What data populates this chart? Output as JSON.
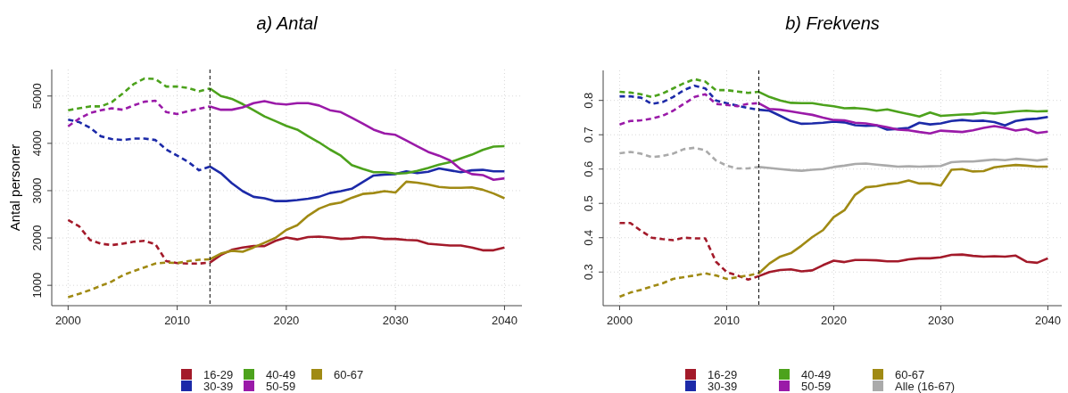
{
  "chart_data": [
    {
      "type": "line",
      "title": "a) Antal",
      "ylabel": "Antal personer",
      "xlim": [
        1998.5,
        2041.6
      ],
      "xticks": [
        2000,
        2010,
        2020,
        2030,
        2040
      ],
      "ylim": [
        570,
        5560
      ],
      "yticks": [
        1000,
        2000,
        3000,
        4000,
        5000
      ],
      "grid": true,
      "legend": "bottom",
      "ref_lines": [
        {
          "axis": "x",
          "value": 2013,
          "color": "#000000",
          "line_style": "dashed"
        }
      ],
      "series": [
        {
          "color": "#a31a2a",
          "line_style": "dashed",
          "x": [
            2000,
            2001,
            2002,
            2003,
            2004,
            2005,
            2006,
            2007,
            2008,
            2009,
            2010,
            2011,
            2012,
            2013
          ],
          "values": [
            2380,
            2250,
            1960,
            1880,
            1850,
            1880,
            1920,
            1940,
            1870,
            1510,
            1470,
            1460,
            1460,
            1480
          ]
        },
        {
          "name": "16-29",
          "color": "#a31a2a",
          "line_style": "solid",
          "x": [
            2013,
            2014,
            2015,
            2016,
            2017,
            2018,
            2019,
            2020,
            2021,
            2022,
            2023,
            2024,
            2025,
            2026,
            2027,
            2028,
            2029,
            2030,
            2031,
            2032,
            2033,
            2034,
            2035,
            2036,
            2037,
            2038,
            2039,
            2040
          ],
          "values": [
            1480,
            1640,
            1750,
            1800,
            1830,
            1830,
            1940,
            2010,
            1970,
            2020,
            2030,
            2010,
            1980,
            1990,
            2020,
            2010,
            1980,
            1980,
            1960,
            1950,
            1880,
            1860,
            1840,
            1840,
            1800,
            1740,
            1740,
            1800
          ]
        },
        {
          "color": "#1c2aa8",
          "line_style": "dashed",
          "x": [
            2000,
            2001,
            2002,
            2003,
            2004,
            2005,
            2006,
            2007,
            2008,
            2009,
            2010,
            2011,
            2012,
            2013
          ],
          "values": [
            4500,
            4450,
            4330,
            4150,
            4090,
            4070,
            4100,
            4100,
            4070,
            3870,
            3740,
            3610,
            3430,
            3510
          ]
        },
        {
          "name": "30-39",
          "color": "#1c2aa8",
          "line_style": "solid",
          "x": [
            2013,
            2014,
            2015,
            2016,
            2017,
            2018,
            2019,
            2020,
            2021,
            2022,
            2023,
            2024,
            2025,
            2026,
            2027,
            2028,
            2029,
            2030,
            2031,
            2032,
            2033,
            2034,
            2035,
            2036,
            2037,
            2038,
            2039,
            2040
          ],
          "values": [
            3510,
            3370,
            3160,
            2990,
            2870,
            2840,
            2780,
            2780,
            2800,
            2830,
            2870,
            2950,
            2990,
            3040,
            3180,
            3320,
            3340,
            3350,
            3410,
            3370,
            3400,
            3470,
            3430,
            3390,
            3430,
            3440,
            3410,
            3410
          ]
        },
        {
          "color": "#4ca21c",
          "line_style": "dashed",
          "x": [
            2000,
            2001,
            2002,
            2003,
            2004,
            2005,
            2006,
            2007,
            2008,
            2009,
            2010,
            2011,
            2012,
            2013
          ],
          "values": [
            4700,
            4740,
            4780,
            4780,
            4870,
            5050,
            5250,
            5370,
            5360,
            5200,
            5200,
            5170,
            5100,
            5160
          ]
        },
        {
          "name": "40-49",
          "color": "#4ca21c",
          "line_style": "solid",
          "x": [
            2013,
            2014,
            2015,
            2016,
            2017,
            2018,
            2019,
            2020,
            2021,
            2022,
            2023,
            2024,
            2025,
            2026,
            2027,
            2028,
            2029,
            2030,
            2031,
            2032,
            2033,
            2034,
            2035,
            2036,
            2037,
            2038,
            2039,
            2040
          ],
          "values": [
            5160,
            5000,
            4940,
            4830,
            4700,
            4570,
            4470,
            4370,
            4290,
            4150,
            4020,
            3870,
            3740,
            3540,
            3460,
            3390,
            3390,
            3360,
            3370,
            3420,
            3480,
            3550,
            3600,
            3680,
            3760,
            3860,
            3930,
            3940
          ]
        },
        {
          "color": "#9a1aa8",
          "line_style": "dashed",
          "x": [
            2000,
            2001,
            2002,
            2003,
            2004,
            2005,
            2006,
            2007,
            2008,
            2009,
            2010,
            2011,
            2012,
            2013
          ],
          "values": [
            4360,
            4520,
            4640,
            4700,
            4740,
            4710,
            4800,
            4880,
            4900,
            4660,
            4620,
            4680,
            4730,
            4780
          ]
        },
        {
          "name": "50-59",
          "color": "#9a1aa8",
          "line_style": "solid",
          "x": [
            2013,
            2014,
            2015,
            2016,
            2017,
            2018,
            2019,
            2020,
            2021,
            2022,
            2023,
            2024,
            2025,
            2026,
            2027,
            2028,
            2029,
            2030,
            2031,
            2032,
            2033,
            2034,
            2035,
            2036,
            2037,
            2038,
            2039,
            2040
          ],
          "values": [
            4780,
            4710,
            4710,
            4760,
            4850,
            4890,
            4840,
            4820,
            4850,
            4850,
            4800,
            4700,
            4660,
            4540,
            4420,
            4290,
            4210,
            4180,
            4060,
            3940,
            3820,
            3740,
            3640,
            3450,
            3350,
            3330,
            3230,
            3260
          ]
        },
        {
          "color": "#a08a14",
          "line_style": "dashed",
          "x": [
            2000,
            2001,
            2002,
            2003,
            2004,
            2005,
            2006,
            2007,
            2008,
            2009,
            2010,
            2011,
            2012,
            2013
          ],
          "values": [
            750,
            820,
            900,
            990,
            1080,
            1210,
            1300,
            1380,
            1460,
            1480,
            1470,
            1510,
            1540,
            1550
          ]
        },
        {
          "name": "60-67",
          "color": "#a08a14",
          "line_style": "solid",
          "x": [
            2013,
            2014,
            2015,
            2016,
            2017,
            2018,
            2019,
            2020,
            2021,
            2022,
            2023,
            2024,
            2025,
            2026,
            2027,
            2028,
            2029,
            2030,
            2031,
            2032,
            2033,
            2034,
            2035,
            2036,
            2037,
            2038,
            2039,
            2040
          ],
          "values": [
            1550,
            1670,
            1730,
            1710,
            1800,
            1900,
            2000,
            2170,
            2270,
            2470,
            2620,
            2710,
            2750,
            2850,
            2930,
            2950,
            2990,
            2960,
            3190,
            3170,
            3130,
            3080,
            3060,
            3060,
            3070,
            3020,
            2940,
            2840
          ]
        }
      ]
    },
    {
      "type": "line",
      "title": "b) Frekvens",
      "xlim": [
        1998.46,
        2041.3
      ],
      "xticks": [
        2000,
        2010,
        2020,
        2030,
        2040
      ],
      "ylim": [
        0.202,
        0.8875
      ],
      "yticks": [
        0.3,
        0.4,
        0.5,
        0.6,
        0.7,
        0.8
      ],
      "grid": true,
      "legend": "bottom",
      "ref_lines": [
        {
          "axis": "x",
          "value": 2013,
          "color": "#000000",
          "line_style": "dashed"
        }
      ],
      "series": [
        {
          "color": "#a31a2a",
          "line_style": "dashed",
          "x": [
            2000,
            2001,
            2002,
            2003,
            2004,
            2005,
            2006,
            2007,
            2008,
            2009,
            2010,
            2011,
            2012,
            2013
          ],
          "values": [
            0.443,
            0.443,
            0.42,
            0.4,
            0.396,
            0.393,
            0.4,
            0.398,
            0.398,
            0.33,
            0.3,
            0.29,
            0.278,
            0.288
          ]
        },
        {
          "name": "16-29",
          "color": "#a31a2a",
          "line_style": "solid",
          "x": [
            2013,
            2014,
            2015,
            2016,
            2017,
            2018,
            2019,
            2020,
            2021,
            2022,
            2023,
            2024,
            2025,
            2026,
            2027,
            2028,
            2029,
            2030,
            2031,
            2032,
            2033,
            2034,
            2035,
            2036,
            2037,
            2038,
            2039,
            2040
          ],
          "values": [
            0.288,
            0.3,
            0.306,
            0.308,
            0.302,
            0.305,
            0.32,
            0.333,
            0.329,
            0.335,
            0.335,
            0.334,
            0.331,
            0.331,
            0.337,
            0.34,
            0.34,
            0.343,
            0.35,
            0.351,
            0.347,
            0.345,
            0.346,
            0.345,
            0.348,
            0.33,
            0.327,
            0.34
          ]
        },
        {
          "color": "#1c2aa8",
          "line_style": "dashed",
          "x": [
            2000,
            2001,
            2002,
            2003,
            2004,
            2005,
            2006,
            2007,
            2008,
            2009,
            2010,
            2011,
            2012,
            2013
          ],
          "values": [
            0.812,
            0.812,
            0.808,
            0.79,
            0.795,
            0.81,
            0.83,
            0.843,
            0.835,
            0.8,
            0.792,
            0.785,
            0.778,
            0.773
          ]
        },
        {
          "name": "30-39",
          "color": "#1c2aa8",
          "line_style": "solid",
          "x": [
            2013,
            2014,
            2015,
            2016,
            2017,
            2018,
            2019,
            2020,
            2021,
            2022,
            2023,
            2024,
            2025,
            2026,
            2027,
            2028,
            2029,
            2030,
            2031,
            2032,
            2033,
            2034,
            2035,
            2036,
            2037,
            2038,
            2039,
            2040
          ],
          "values": [
            0.773,
            0.77,
            0.755,
            0.74,
            0.732,
            0.733,
            0.735,
            0.738,
            0.736,
            0.728,
            0.726,
            0.727,
            0.715,
            0.717,
            0.72,
            0.735,
            0.73,
            0.733,
            0.74,
            0.743,
            0.74,
            0.741,
            0.737,
            0.727,
            0.74,
            0.745,
            0.747,
            0.752
          ]
        },
        {
          "color": "#4ca21c",
          "line_style": "dashed",
          "x": [
            2000,
            2001,
            2002,
            2003,
            2004,
            2005,
            2006,
            2007,
            2008,
            2009,
            2010,
            2011,
            2012,
            2013
          ],
          "values": [
            0.825,
            0.823,
            0.818,
            0.81,
            0.82,
            0.835,
            0.85,
            0.862,
            0.855,
            0.83,
            0.83,
            0.826,
            0.822,
            0.825
          ]
        },
        {
          "name": "40-49",
          "color": "#4ca21c",
          "line_style": "solid",
          "x": [
            2013,
            2014,
            2015,
            2016,
            2017,
            2018,
            2019,
            2020,
            2021,
            2022,
            2023,
            2024,
            2025,
            2026,
            2027,
            2028,
            2029,
            2030,
            2031,
            2032,
            2033,
            2034,
            2035,
            2036,
            2037,
            2038,
            2039,
            2040
          ],
          "values": [
            0.825,
            0.81,
            0.8,
            0.793,
            0.792,
            0.792,
            0.787,
            0.783,
            0.777,
            0.778,
            0.775,
            0.77,
            0.774,
            0.767,
            0.76,
            0.753,
            0.765,
            0.755,
            0.757,
            0.759,
            0.76,
            0.764,
            0.762,
            0.765,
            0.768,
            0.77,
            0.768,
            0.769
          ]
        },
        {
          "color": "#9a1aa8",
          "line_style": "dashed",
          "x": [
            2000,
            2001,
            2002,
            2003,
            2004,
            2005,
            2006,
            2007,
            2008,
            2009,
            2010,
            2011,
            2012,
            2013
          ],
          "values": [
            0.73,
            0.74,
            0.742,
            0.747,
            0.755,
            0.77,
            0.79,
            0.81,
            0.818,
            0.79,
            0.787,
            0.783,
            0.79,
            0.792
          ]
        },
        {
          "name": "50-59",
          "color": "#9a1aa8",
          "line_style": "solid",
          "x": [
            2013,
            2014,
            2015,
            2016,
            2017,
            2018,
            2019,
            2020,
            2021,
            2022,
            2023,
            2024,
            2025,
            2026,
            2027,
            2028,
            2029,
            2030,
            2031,
            2032,
            2033,
            2034,
            2035,
            2036,
            2037,
            2038,
            2039,
            2040
          ],
          "values": [
            0.792,
            0.775,
            0.773,
            0.768,
            0.763,
            0.758,
            0.75,
            0.743,
            0.742,
            0.735,
            0.733,
            0.728,
            0.722,
            0.715,
            0.713,
            0.708,
            0.704,
            0.712,
            0.71,
            0.708,
            0.713,
            0.72,
            0.725,
            0.72,
            0.712,
            0.717,
            0.705,
            0.709
          ]
        },
        {
          "color": "#a08a14",
          "line_style": "dashed",
          "x": [
            2000,
            2001,
            2002,
            2003,
            2004,
            2005,
            2006,
            2007,
            2008,
            2009,
            2010,
            2011,
            2012,
            2013
          ],
          "values": [
            0.228,
            0.24,
            0.248,
            0.258,
            0.267,
            0.28,
            0.285,
            0.29,
            0.296,
            0.29,
            0.28,
            0.285,
            0.29,
            0.296
          ]
        },
        {
          "name": "60-67",
          "color": "#a08a14",
          "line_style": "solid",
          "x": [
            2013,
            2014,
            2015,
            2016,
            2017,
            2018,
            2019,
            2020,
            2021,
            2022,
            2023,
            2024,
            2025,
            2026,
            2027,
            2028,
            2029,
            2030,
            2031,
            2032,
            2033,
            2034,
            2035,
            2036,
            2037,
            2038,
            2039,
            2040
          ],
          "values": [
            0.296,
            0.325,
            0.345,
            0.355,
            0.377,
            0.402,
            0.422,
            0.46,
            0.48,
            0.525,
            0.547,
            0.55,
            0.556,
            0.559,
            0.567,
            0.558,
            0.558,
            0.552,
            0.598,
            0.6,
            0.593,
            0.594,
            0.605,
            0.609,
            0.612,
            0.61,
            0.607,
            0.607
          ]
        },
        {
          "color": "#aaaaaa",
          "line_style": "dashed",
          "x": [
            2000,
            2001,
            2002,
            2003,
            2004,
            2005,
            2006,
            2007,
            2008,
            2009,
            2010,
            2011,
            2012,
            2013
          ],
          "values": [
            0.646,
            0.65,
            0.645,
            0.635,
            0.638,
            0.645,
            0.658,
            0.662,
            0.655,
            0.625,
            0.61,
            0.602,
            0.602,
            0.606
          ]
        },
        {
          "name": "Alle (16-67)",
          "color": "#aaaaaa",
          "line_style": "solid",
          "x": [
            2013,
            2014,
            2015,
            2016,
            2017,
            2018,
            2019,
            2020,
            2021,
            2022,
            2023,
            2024,
            2025,
            2026,
            2027,
            2028,
            2029,
            2030,
            2031,
            2032,
            2033,
            2034,
            2035,
            2036,
            2037,
            2038,
            2039,
            2040
          ],
          "values": [
            0.606,
            0.603,
            0.6,
            0.597,
            0.595,
            0.598,
            0.6,
            0.606,
            0.61,
            0.615,
            0.616,
            0.613,
            0.61,
            0.607,
            0.608,
            0.607,
            0.608,
            0.609,
            0.62,
            0.622,
            0.622,
            0.625,
            0.628,
            0.626,
            0.63,
            0.628,
            0.625,
            0.629
          ]
        }
      ]
    }
  ]
}
